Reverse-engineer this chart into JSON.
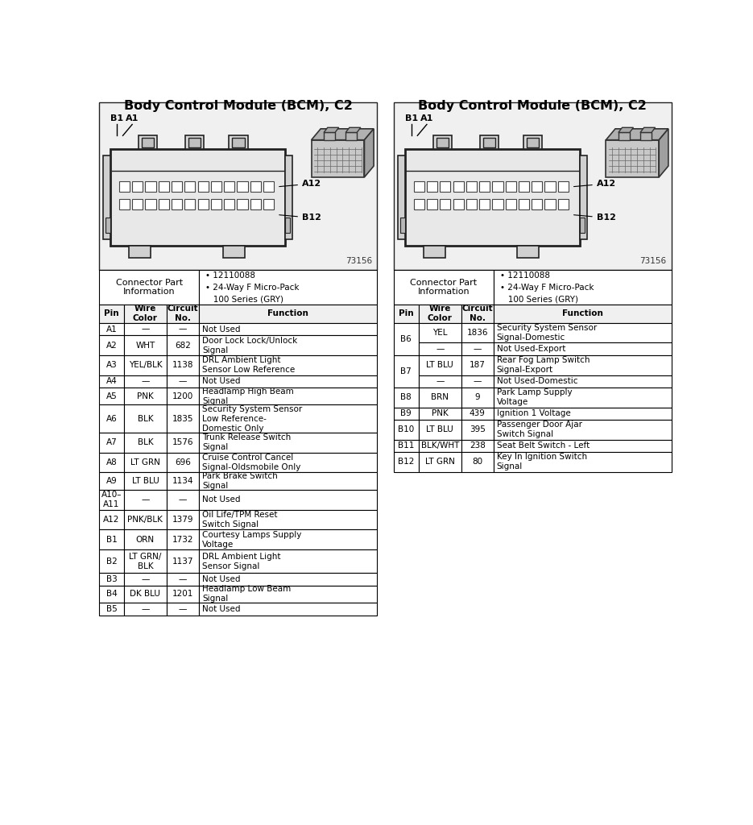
{
  "title": "Body Control Module (BCM), C2",
  "page_background": "#ffffff",
  "connector_info_header": "Connector Part\nInformation",
  "connector_specs": "• 12110088\n• 24-Way F Micro-Pack\n   100 Series (GRY)",
  "col_headers": [
    "Pin",
    "Wire\nColor",
    "Circuit\nNo.",
    "Function"
  ],
  "left_table": [
    [
      "A1",
      "—",
      "—",
      "Not Used"
    ],
    [
      "A2",
      "WHT",
      "682",
      "Door Lock Lock/Unlock\nSignal"
    ],
    [
      "A3",
      "YEL/BLK",
      "1138",
      "DRL Ambient Light\nSensor Low Reference"
    ],
    [
      "A4",
      "—",
      "—",
      "Not Used"
    ],
    [
      "A5",
      "PNK",
      "1200",
      "Headlamp High Beam\nSignal"
    ],
    [
      "A6",
      "BLK",
      "1835",
      "Security System Sensor\nLow Reference-\nDomestic Only"
    ],
    [
      "A7",
      "BLK",
      "1576",
      "Trunk Release Switch\nSignal"
    ],
    [
      "A8",
      "LT GRN",
      "696",
      "Cruise Control Cancel\nSignal-Oldsmobile Only"
    ],
    [
      "A9",
      "LT BLU",
      "1134",
      "Park Brake Switch\nSignal"
    ],
    [
      "A10–\nA11",
      "—",
      "—",
      "Not Used"
    ],
    [
      "A12",
      "PNK/BLK",
      "1379",
      "Oil Life/TPM Reset\nSwitch Signal"
    ],
    [
      "B1",
      "ORN",
      "1732",
      "Courtesy Lamps Supply\nVoltage"
    ],
    [
      "B2",
      "LT GRN/\nBLK",
      "1137",
      "DRL Ambient Light\nSensor Signal"
    ],
    [
      "B3",
      "—",
      "—",
      "Not Used"
    ],
    [
      "B4",
      "DK BLU",
      "1201",
      "Headlamp Low Beam\nSignal"
    ],
    [
      "B5",
      "—",
      "—",
      "Not Used"
    ]
  ],
  "right_table_merged": [
    {
      "pin": "B6",
      "pin_rows": 2,
      "sub_rows": [
        [
          "YEL",
          "1836",
          "Security System Sensor\nSignal-Domestic"
        ],
        [
          "—",
          "—",
          "Not Used-Export"
        ]
      ]
    },
    {
      "pin": "B7",
      "pin_rows": 2,
      "sub_rows": [
        [
          "LT BLU",
          "187",
          "Rear Fog Lamp Switch\nSignal-Export"
        ],
        [
          "—",
          "—",
          "Not Used-Domestic"
        ]
      ]
    },
    {
      "pin": "B8",
      "pin_rows": 1,
      "sub_rows": [
        [
          "BRN",
          "9",
          "Park Lamp Supply\nVoltage"
        ]
      ]
    },
    {
      "pin": "B9",
      "pin_rows": 1,
      "sub_rows": [
        [
          "PNK",
          "439",
          "Ignition 1 Voltage"
        ]
      ]
    },
    {
      "pin": "B10",
      "pin_rows": 1,
      "sub_rows": [
        [
          "LT BLU",
          "395",
          "Passenger Door Ajar\nSwitch Signal"
        ]
      ]
    },
    {
      "pin": "B11",
      "pin_rows": 1,
      "sub_rows": [
        [
          "BLK/WHT",
          "238",
          "Seat Belt Switch - Left"
        ]
      ]
    },
    {
      "pin": "B12",
      "pin_rows": 1,
      "sub_rows": [
        [
          "LT GRN",
          "80",
          "Key In Ignition Switch\nSignal"
        ]
      ]
    }
  ],
  "sub_row_heights": {
    "B6_0": 32,
    "B6_1": 20,
    "B7_0": 32,
    "B7_1": 20,
    "B8": 32,
    "B9": 20,
    "B10": 32,
    "B11": 20,
    "B12": 32
  },
  "left_row_heights": [
    20,
    32,
    32,
    20,
    28,
    45,
    32,
    32,
    28,
    32,
    32,
    32,
    38,
    20,
    28,
    20
  ],
  "diagram_bg": "#f0f0f0",
  "diagram_border": "#222222",
  "table_header_bg": "#e0e0e0",
  "table_bg": "#ffffff",
  "lc": "#000000"
}
